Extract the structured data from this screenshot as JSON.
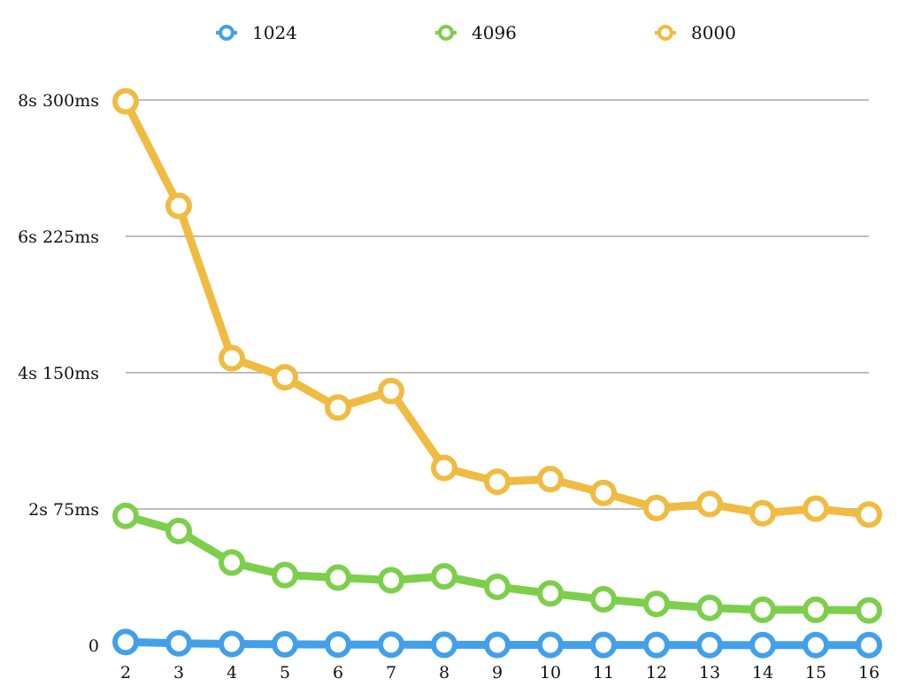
{
  "chart_data": {
    "type": "line",
    "x": [
      2,
      3,
      4,
      5,
      6,
      7,
      8,
      9,
      10,
      11,
      12,
      13,
      14,
      15,
      16
    ],
    "x_tick_labels": [
      "2",
      "3",
      "4",
      "5",
      "6",
      "7",
      "8",
      "9",
      "10",
      "11",
      "12",
      "13",
      "14",
      "15",
      "16"
    ],
    "y_unit": "ms",
    "ylim": [
      0,
      8300
    ],
    "y_ticks": [
      0,
      2075,
      4150,
      6225,
      8300
    ],
    "y_tick_labels": [
      "0",
      "2s 75ms",
      "4s 150ms",
      "6s 225ms",
      "8s 300ms"
    ],
    "grid": true,
    "legend_position": "top",
    "series": [
      {
        "name": "1024",
        "color": "#42a0ea",
        "values": [
          50,
          30,
          20,
          15,
          12,
          10,
          8,
          7,
          6,
          5,
          5,
          4,
          4,
          4,
          3
        ]
      },
      {
        "name": "4096",
        "color": "#7ccf4b",
        "values": [
          1970,
          1740,
          1260,
          1070,
          1030,
          990,
          1050,
          890,
          790,
          700,
          630,
          570,
          540,
          540,
          530
        ]
      },
      {
        "name": "8000",
        "color": "#f0bb41",
        "values": [
          8280,
          6690,
          4370,
          4080,
          3620,
          3870,
          2700,
          2490,
          2530,
          2320,
          2090,
          2150,
          2010,
          2080,
          1990
        ]
      }
    ]
  }
}
